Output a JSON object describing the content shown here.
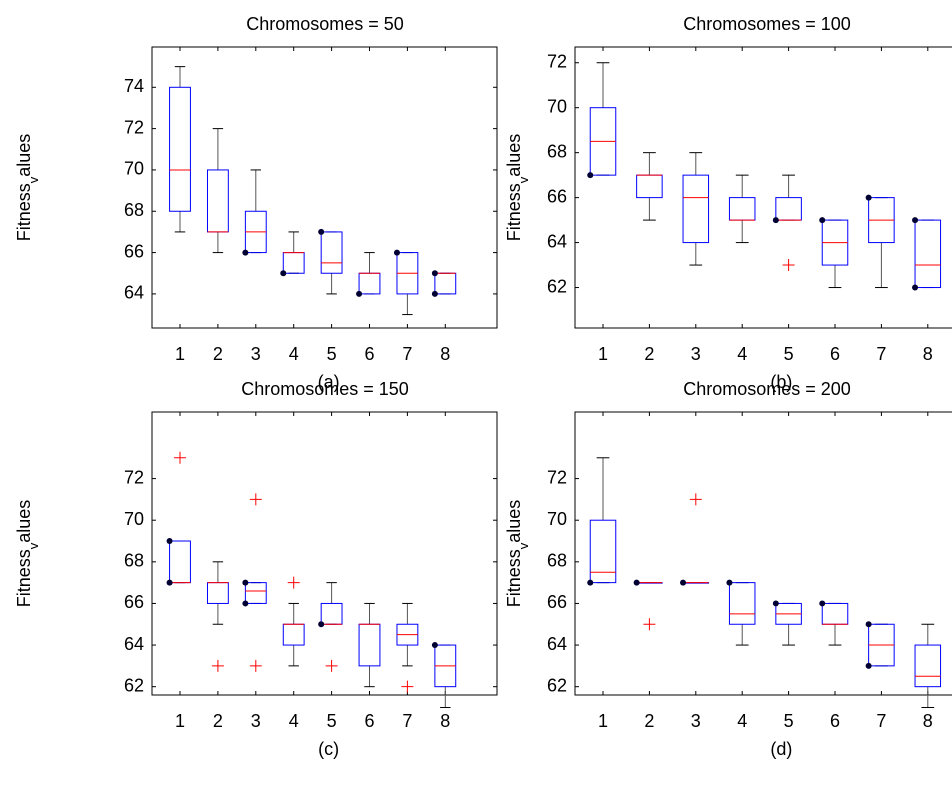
{
  "chart_data": [
    {
      "type": "box",
      "title": "Chromosomes = 50",
      "caption": "(a)",
      "ylabel": [
        "Fitness",
        "v",
        "alues"
      ],
      "categories": [
        "1",
        "2",
        "3",
        "4",
        "5",
        "6",
        "7",
        "8"
      ],
      "ylim": [
        62.35,
        75.95
      ],
      "yticks": [
        64,
        66,
        68,
        70,
        72,
        74
      ],
      "box_color": "#0000ff",
      "median_color": "#ff0000",
      "flier_color": "#ff0000",
      "whisker_color": "#555555",
      "dot_color": "#000033",
      "boxes": [
        {
          "whislo": 67,
          "q1": 68,
          "med": 70,
          "q3": 74,
          "whishi": 75,
          "fliers": [],
          "dots": []
        },
        {
          "whislo": 66,
          "q1": 67,
          "med": 67,
          "q3": 70,
          "whishi": 72,
          "fliers": [],
          "dots": []
        },
        {
          "whislo": 66,
          "q1": 66,
          "med": 67,
          "q3": 68,
          "whishi": 70,
          "fliers": [],
          "dots": [
            66
          ]
        },
        {
          "whislo": 65,
          "q1": 65,
          "med": 66,
          "q3": 66,
          "whishi": 67,
          "fliers": [],
          "dots": [
            65
          ]
        },
        {
          "whislo": 64,
          "q1": 65,
          "med": 65.5,
          "q3": 67,
          "whishi": 67,
          "fliers": [],
          "dots": [
            67
          ]
        },
        {
          "whislo": 64,
          "q1": 64,
          "med": 65,
          "q3": 65,
          "whishi": 66,
          "fliers": [],
          "dots": [
            64
          ]
        },
        {
          "whislo": 63,
          "q1": 64,
          "med": 65,
          "q3": 66,
          "whishi": 66,
          "fliers": [],
          "dots": [
            66
          ]
        },
        {
          "whislo": 64,
          "q1": 64,
          "med": 65,
          "q3": 65,
          "whishi": 65,
          "fliers": [],
          "dots": [
            64,
            65
          ]
        }
      ]
    },
    {
      "type": "box",
      "title": "Chromosomes = 100",
      "caption": "(b)",
      "ylabel": [
        "Fitness",
        "v",
        "alues"
      ],
      "categories": [
        "1",
        "2",
        "3",
        "4",
        "5",
        "6",
        "7",
        "8"
      ],
      "ylim": [
        60.2,
        72.7
      ],
      "yticks": [
        62,
        64,
        66,
        68,
        70,
        72
      ],
      "box_color": "#0000ff",
      "median_color": "#ff0000",
      "flier_color": "#ff0000",
      "whisker_color": "#555555",
      "dot_color": "#000033",
      "boxes": [
        {
          "whislo": 67,
          "q1": 67,
          "med": 68.5,
          "q3": 70,
          "whishi": 72,
          "fliers": [],
          "dots": [
            67
          ]
        },
        {
          "whislo": 65,
          "q1": 66,
          "med": 67,
          "q3": 67,
          "whishi": 68,
          "fliers": [],
          "dots": []
        },
        {
          "whislo": 63,
          "q1": 64,
          "med": 66,
          "q3": 67,
          "whishi": 68,
          "fliers": [],
          "dots": []
        },
        {
          "whislo": 64,
          "q1": 65,
          "med": 65,
          "q3": 66,
          "whishi": 67,
          "fliers": [],
          "dots": []
        },
        {
          "whislo": 65,
          "q1": 65,
          "med": 65,
          "q3": 66,
          "whishi": 67,
          "fliers": [
            63
          ],
          "dots": [
            65
          ]
        },
        {
          "whislo": 62,
          "q1": 63,
          "med": 64,
          "q3": 65,
          "whishi": 65,
          "fliers": [],
          "dots": [
            65
          ]
        },
        {
          "whislo": 62,
          "q1": 64,
          "med": 65,
          "q3": 66,
          "whishi": 66,
          "fliers": [],
          "dots": [
            66
          ]
        },
        {
          "whislo": 62,
          "q1": 62,
          "med": 63,
          "q3": 65,
          "whishi": 65,
          "fliers": [],
          "dots": [
            65,
            62
          ]
        }
      ]
    },
    {
      "type": "box",
      "title": "Chromosomes = 150",
      "caption": "(c)",
      "ylabel": [
        "Fitness",
        "v",
        "alues"
      ],
      "categories": [
        "1",
        "2",
        "3",
        "4",
        "5",
        "6",
        "7",
        "8"
      ],
      "ylim": [
        61.6,
        75.2
      ],
      "yticks": [
        62,
        64,
        66,
        68,
        70,
        72
      ],
      "box_color": "#0000ff",
      "median_color": "#ff0000",
      "flier_color": "#ff0000",
      "whisker_color": "#555555",
      "dot_color": "#000033",
      "boxes": [
        {
          "whislo": 67,
          "q1": 67,
          "med": 67,
          "q3": 69,
          "whishi": 69,
          "fliers": [
            73
          ],
          "dots": [
            69,
            67
          ]
        },
        {
          "whislo": 65,
          "q1": 66,
          "med": 67,
          "q3": 67,
          "whishi": 68,
          "fliers": [
            63
          ],
          "dots": []
        },
        {
          "whislo": 66,
          "q1": 66,
          "med": 66.6,
          "q3": 67,
          "whishi": 67,
          "fliers": [
            71,
            63
          ],
          "dots": [
            67,
            66
          ]
        },
        {
          "whislo": 63,
          "q1": 64,
          "med": 65,
          "q3": 65,
          "whishi": 66,
          "fliers": [
            67
          ],
          "dots": []
        },
        {
          "whislo": 65,
          "q1": 65,
          "med": 65,
          "q3": 66,
          "whishi": 67,
          "fliers": [
            63
          ],
          "dots": [
            65
          ]
        },
        {
          "whislo": 62,
          "q1": 63,
          "med": 65,
          "q3": 65,
          "whishi": 66,
          "fliers": [],
          "dots": []
        },
        {
          "whislo": 63,
          "q1": 64,
          "med": 64.5,
          "q3": 65,
          "whishi": 66,
          "fliers": [
            62
          ],
          "dots": []
        },
        {
          "whislo": 61,
          "q1": 62,
          "med": 63,
          "q3": 64,
          "whishi": 64,
          "fliers": [],
          "dots": [
            64
          ]
        }
      ]
    },
    {
      "type": "box",
      "title": "Chromosomes = 200",
      "caption": "(d)",
      "ylabel": [
        "Fitness",
        "v",
        "alues"
      ],
      "categories": [
        "1",
        "2",
        "3",
        "4",
        "5",
        "6",
        "7",
        "8"
      ],
      "ylim": [
        61.6,
        75.2
      ],
      "yticks": [
        62,
        64,
        66,
        68,
        70,
        72
      ],
      "box_color": "#0000ff",
      "median_color": "#ff0000",
      "flier_color": "#ff0000",
      "whisker_color": "#555555",
      "dot_color": "#000033",
      "boxes": [
        {
          "whislo": 67,
          "q1": 67,
          "med": 67.5,
          "q3": 70,
          "whishi": 73,
          "fliers": [],
          "dots": [
            67
          ]
        },
        {
          "whislo": 67,
          "q1": 67,
          "med": 67,
          "q3": 67,
          "whishi": 67,
          "fliers": [
            65
          ],
          "dots": [
            67
          ]
        },
        {
          "whislo": 67,
          "q1": 67,
          "med": 67,
          "q3": 67,
          "whishi": 67,
          "fliers": [
            71
          ],
          "dots": [
            67
          ]
        },
        {
          "whislo": 64,
          "q1": 65,
          "med": 65.5,
          "q3": 67,
          "whishi": 67,
          "fliers": [],
          "dots": [
            67
          ]
        },
        {
          "whislo": 64,
          "q1": 65,
          "med": 65.5,
          "q3": 66,
          "whishi": 66,
          "fliers": [],
          "dots": [
            66
          ]
        },
        {
          "whislo": 64,
          "q1": 65,
          "med": 65,
          "q3": 66,
          "whishi": 66,
          "fliers": [],
          "dots": [
            66
          ]
        },
        {
          "whislo": 63,
          "q1": 63,
          "med": 64,
          "q3": 65,
          "whishi": 65,
          "fliers": [],
          "dots": [
            65,
            63
          ]
        },
        {
          "whislo": 61,
          "q1": 62,
          "med": 62.5,
          "q3": 64,
          "whishi": 65,
          "fliers": [],
          "dots": []
        }
      ]
    }
  ]
}
